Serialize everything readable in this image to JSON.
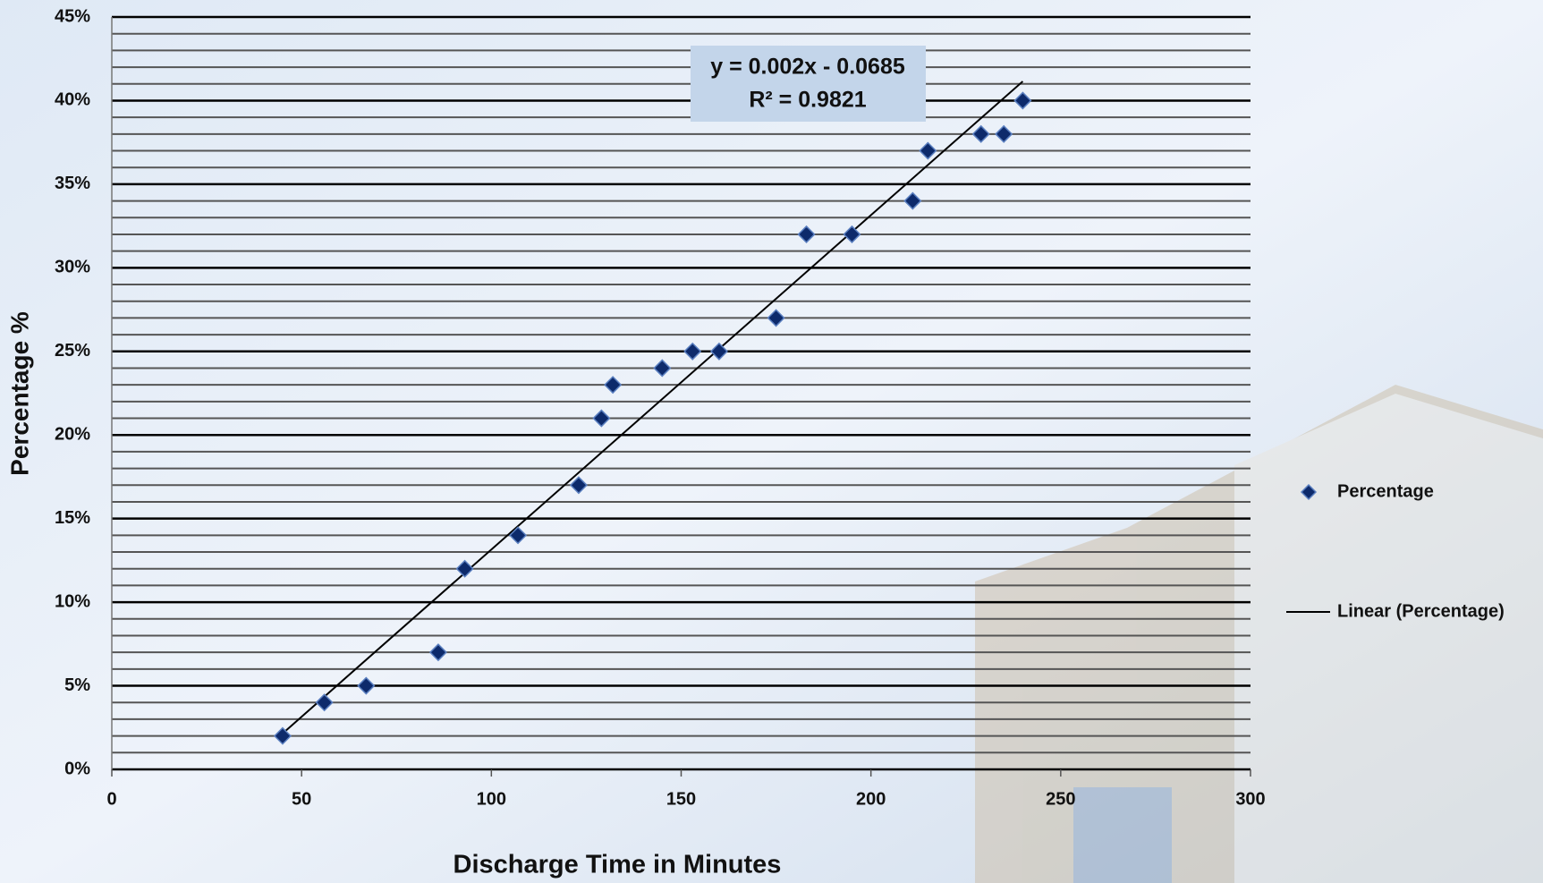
{
  "chart_data": {
    "type": "scatter",
    "x_label": "Discharge Time in Minutes",
    "y_label": "Percentage %",
    "annotation": [
      "y = 0.002x - 0.0685",
      "R² = 0.9821"
    ],
    "series": [
      {
        "name": "Percentage",
        "color": "#0d2a6b",
        "x": [
          45,
          56,
          67,
          86,
          93,
          107,
          123,
          129,
          132,
          145,
          153,
          160,
          175,
          183,
          195,
          211,
          215,
          229,
          235,
          240
        ],
        "values": [
          2,
          4,
          5,
          7,
          12,
          14,
          17,
          21,
          23,
          24,
          25,
          25,
          27,
          32,
          32,
          34,
          37,
          38,
          38,
          40
        ]
      }
    ],
    "trendline": {
      "name": "Linear (Percentage)",
      "color": "#000000",
      "x": [
        45,
        240
      ],
      "values": [
        2.15,
        41.15
      ]
    },
    "xlim": [
      0,
      300
    ],
    "xticks": [
      0,
      50,
      100,
      150,
      200,
      250,
      300
    ],
    "ylim": [
      0,
      45
    ],
    "yticks": [
      {
        "value": 0,
        "label": "0%"
      },
      {
        "value": 5,
        "label": "5%"
      },
      {
        "value": 10,
        "label": "10%"
      },
      {
        "value": 15,
        "label": "15%"
      },
      {
        "value": 20,
        "label": "20%"
      },
      {
        "value": 25,
        "label": "25%"
      },
      {
        "value": 30,
        "label": "30%"
      },
      {
        "value": 35,
        "label": "35%"
      },
      {
        "value": 40,
        "label": "40%"
      },
      {
        "value": 45,
        "label": "45%"
      }
    ],
    "minor_yticks": [
      1,
      2,
      3,
      4,
      6,
      7,
      8,
      9,
      11,
      12,
      13,
      14,
      16,
      17,
      18,
      19,
      21,
      22,
      23,
      24,
      26,
      27,
      28,
      29,
      31,
      32,
      33,
      34,
      36,
      37,
      38,
      39,
      41,
      42,
      43,
      44
    ],
    "grid": true,
    "legend": "right"
  }
}
